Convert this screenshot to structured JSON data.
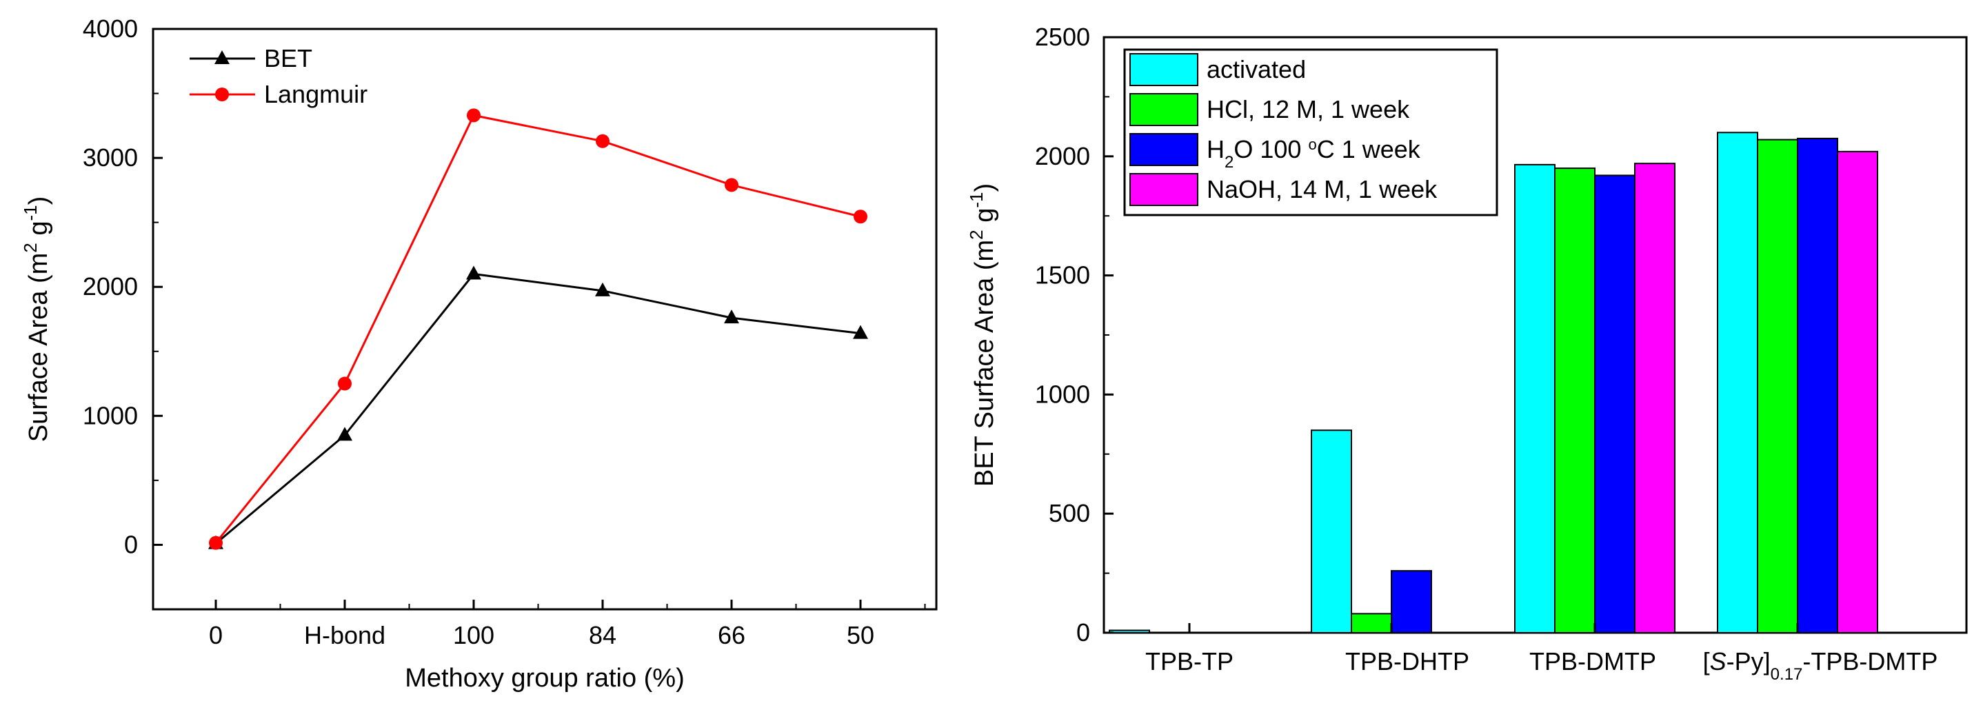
{
  "chart_data": [
    {
      "type": "line",
      "title": "",
      "xlabel": "Methoxy group ratio (%)",
      "ylabel_main": "Surface Area (m",
      "ylabel_sup1": "2",
      "ylabel_mid": " g",
      "ylabel_sup2": "-1",
      "ylabel_end": ")",
      "categories": [
        "0",
        "H-bond",
        "100",
        "84",
        "66",
        "50"
      ],
      "ylim": [
        -500,
        4000
      ],
      "yticks": [
        0,
        1000,
        2000,
        3000,
        4000
      ],
      "yticklabels": [
        "0",
        "1000",
        "2000",
        "3000",
        "4000"
      ],
      "series": [
        {
          "name": "BET",
          "color": "#000000",
          "marker": "triangle",
          "values": [
            10,
            850,
            2100,
            1970,
            1760,
            1640
          ]
        },
        {
          "name": "Langmuir",
          "color": "#ff0000",
          "marker": "circle",
          "values": [
            15,
            1250,
            3330,
            3130,
            2790,
            2545
          ]
        }
      ],
      "legend_position": "top-left"
    },
    {
      "type": "bar",
      "title": "",
      "xlabel": "",
      "ylabel_main": "BET Surface Area (m",
      "ylabel_sup1": "2",
      "ylabel_mid": " g",
      "ylabel_sup2": "-1",
      "ylabel_end": ")",
      "categories": [
        "TPB-TP",
        "TPB-DHTP",
        "TPB-DMTP",
        "[S-Py]0.17-TPB-DMTP"
      ],
      "category_rich": {
        "bracket_open": "[",
        "italic": "S",
        "after_italic": "-Py]",
        "subscript": "0.17",
        "suffix": "-TPB-DMTP"
      },
      "ylim": [
        0,
        2500
      ],
      "yticks": [
        0,
        500,
        1000,
        1500,
        2000,
        2500
      ],
      "yticklabels": [
        "0",
        "500",
        "1000",
        "1500",
        "2000",
        "2500"
      ],
      "series": [
        {
          "name": "activated",
          "color": "#00ffff",
          "values": [
            10,
            850,
            1965,
            2100
          ]
        },
        {
          "name": "HCl, 12 M, 1 week",
          "color": "#00ff00",
          "values": [
            0,
            80,
            1950,
            2070
          ]
        },
        {
          "name": "H2O 100 °C 1 week",
          "name_parts": {
            "a": "H",
            "sub": "2",
            "b": "O 100 ",
            "sup": "o",
            "c": "C 1 week"
          },
          "color": "#0000ff",
          "values": [
            0,
            260,
            1920,
            2075
          ]
        },
        {
          "name": "NaOH, 14 M, 1 week",
          "color": "#ff00ff",
          "values": [
            0,
            0,
            1970,
            2020
          ]
        }
      ],
      "legend_position": "top-left"
    }
  ]
}
